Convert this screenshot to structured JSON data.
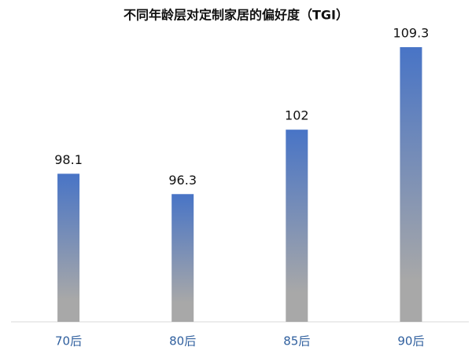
{
  "chart_data": {
    "type": "bar",
    "title": "不同年龄层对定制家居的偏好度（TGI）",
    "categories": [
      "70后",
      "80后",
      "85后",
      "90后"
    ],
    "values": [
      98.1,
      96.3,
      102,
      109.3
    ],
    "gradient": [
      "#4874c6",
      "#a8a8a8"
    ],
    "ylim": [
      85,
      110
    ]
  }
}
